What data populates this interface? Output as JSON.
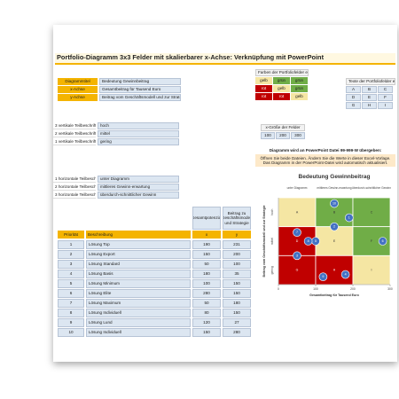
{
  "title": "Portfolio-Diagramm 3x3 Felder mit skalierbarer x-Achse: Verknüpfung mit PowerPoint",
  "settings": [
    {
      "label": "Diagrammtitel",
      "value": "Bedeutung Gewinnbeitrag"
    },
    {
      "label": "x-Achse",
      "value": "Gesamtbeitrag für Tausend Euro"
    },
    {
      "label": "y-Achse",
      "value": "Beitrag vom Geschäftsmodell und zur Strategie"
    }
  ],
  "vertical": [
    {
      "label": "3 vertikale Teilbeschriftung",
      "value": "hoch"
    },
    {
      "label": "2 vertikale Teilbeschriftung",
      "value": "mittel"
    },
    {
      "label": "1 vertikale Teilbeschriftung",
      "value": "gering"
    }
  ],
  "horizontal": [
    {
      "label": "1 horizontale Teilbeschriftung",
      "value": "unter Diagramm"
    },
    {
      "label": "2 horizontale Teilbeschriftung",
      "value": "mittleres Gewinn-erwartung"
    },
    {
      "label": "3 horizontale Teilbeschriftung",
      "value": "überdurch-schnittlicher Gewinn"
    }
  ],
  "colors": {
    "title": "Farben der Portfoliofelder einstellen",
    "cells": [
      [
        "gelb",
        "grün",
        "grün"
      ],
      [
        "rot",
        "gelb",
        "grün"
      ],
      [
        "rot",
        "rot",
        "gelb"
      ]
    ]
  },
  "palette": {
    "gelb": "#f5e6a3",
    "grün": "#70ad47",
    "rot": "#c00000"
  },
  "texts": {
    "title": "Texte der Portfoliofelder einstellen",
    "cells": [
      [
        "A",
        "B",
        "C"
      ],
      [
        "D",
        "E",
        "F"
      ],
      [
        "G",
        "H",
        "I"
      ]
    ]
  },
  "field_sizes": {
    "title": "x-Größe der Felder",
    "values": [
      100,
      200,
      300
    ]
  },
  "note": {
    "title": "Diagramm wird an PowerPoint Datei 99-999-W übergeben:",
    "text": "Öffnen Sie beide Dateien. Ändern Sie die Werte in dieser Excel-Vorlage. Das Diagramm in der PowerPoint-Datei wird automatisch aktualisiert."
  },
  "table": {
    "headers": [
      "Priorität",
      "Beschreibung",
      "Gesamtpotenzial",
      "Beitrag zu Geschäftsmodell und Strategie"
    ],
    "subheaders": [
      "x",
      "y"
    ],
    "rows": [
      [
        1,
        "Lösung Top",
        190,
        231
      ],
      [
        2,
        "Lösung Export",
        150,
        200
      ],
      [
        3,
        "Lösung Standard",
        50,
        100
      ],
      [
        4,
        "Lösung Basis",
        180,
        35
      ],
      [
        5,
        "Lösung Minimum",
        100,
        150
      ],
      [
        6,
        "Lösung Elite",
        280,
        150
      ],
      [
        7,
        "Lösung Maximum",
        50,
        180
      ],
      [
        8,
        "Lösung Individuell",
        80,
        150
      ],
      [
        9,
        "Lösung Lund",
        120,
        27
      ],
      [
        10,
        "Lösung Individuell",
        150,
        280
      ]
    ]
  },
  "chart": {
    "title": "Bedeutung Gewinnbeitrag",
    "x_label": "Gesamtbeitrag für Tausend Euro",
    "y_label": "Beitrag vom Geschäftsmodell und zur Strategie",
    "xlim": [
      0,
      300
    ],
    "ylim": [
      0,
      300
    ],
    "xticks": [
      0,
      100,
      200,
      300
    ]
  }
}
